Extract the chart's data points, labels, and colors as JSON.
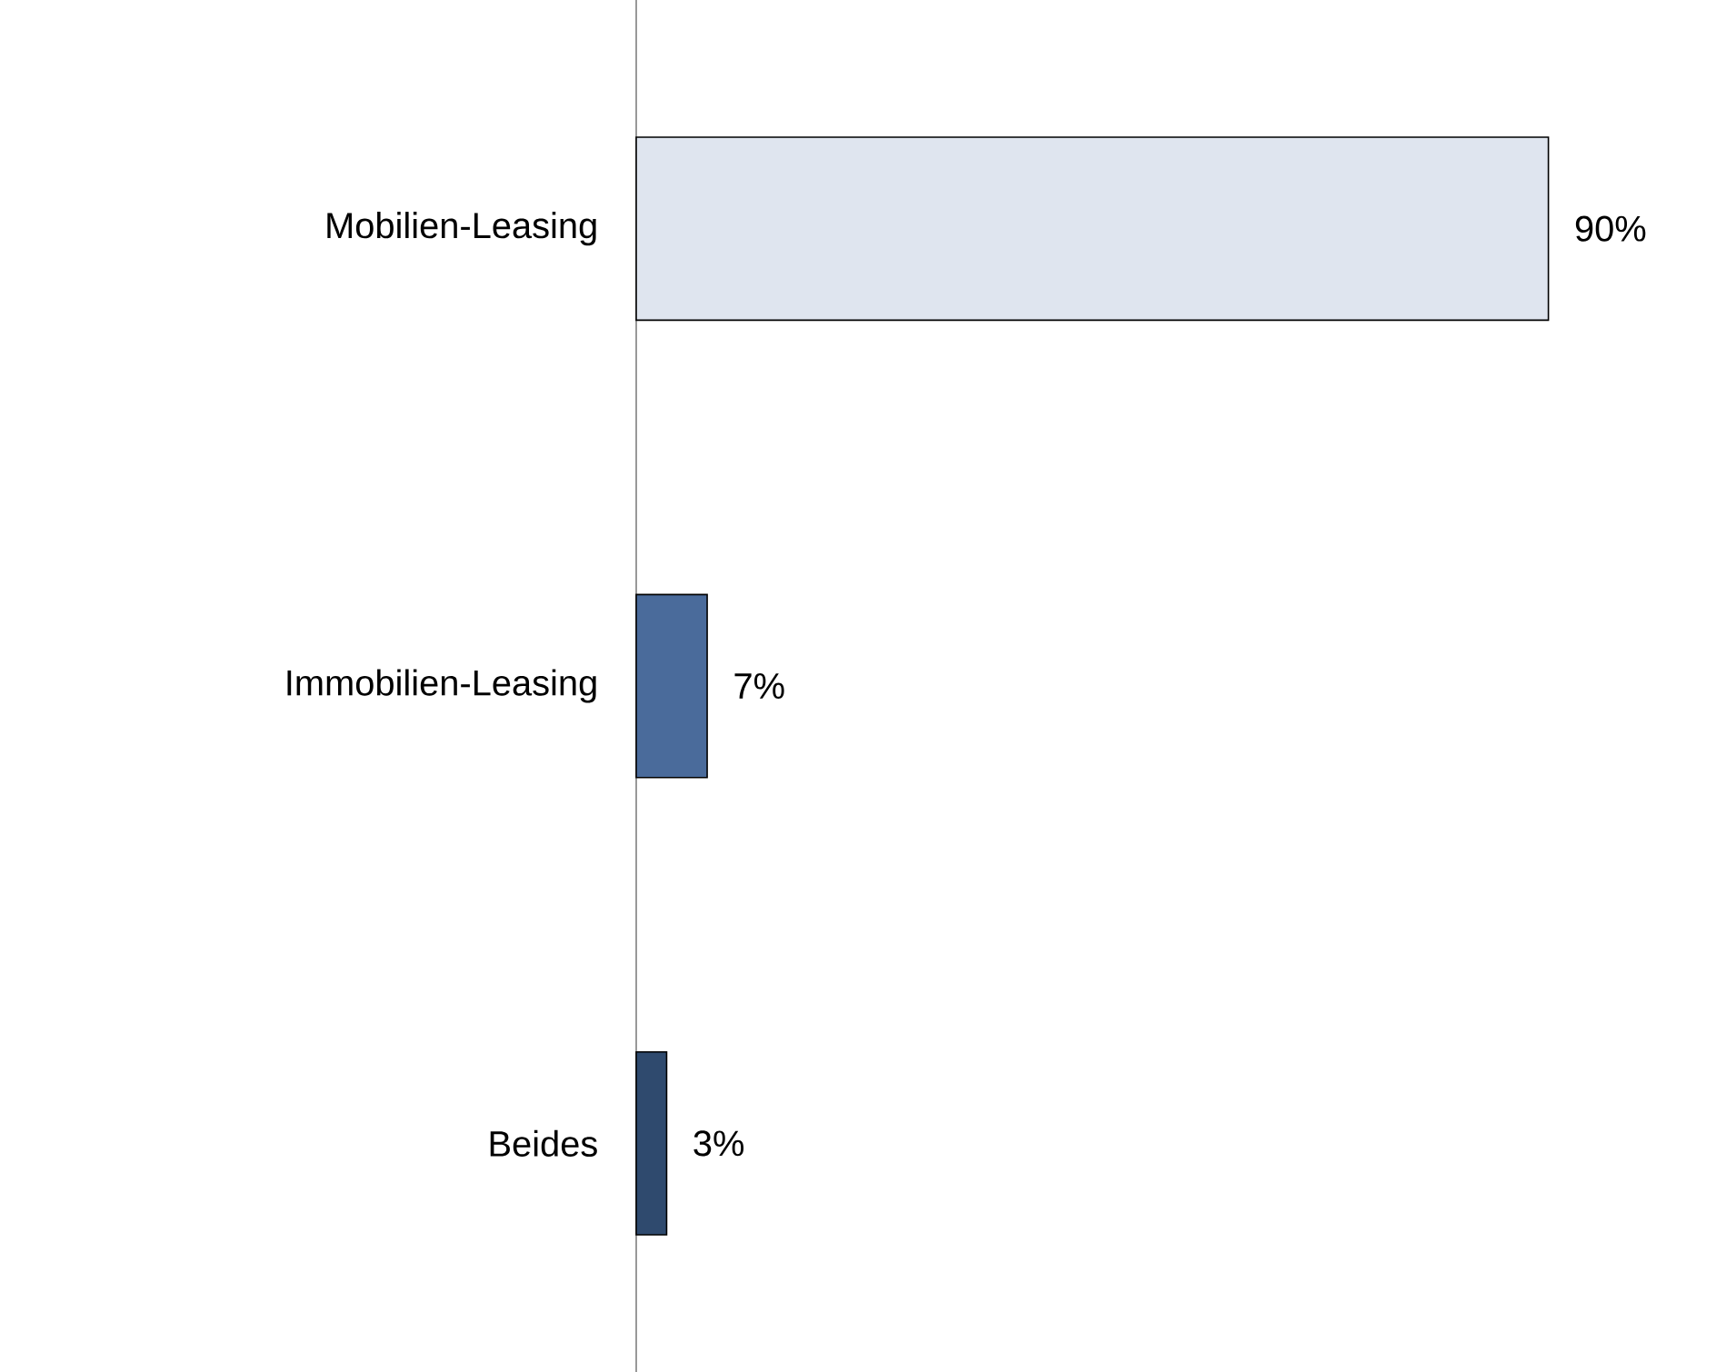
{
  "chart_data": {
    "type": "bar",
    "orientation": "horizontal",
    "categories": [
      "Mobilien-Leasing",
      "Immobilien-Leasing",
      "Beides"
    ],
    "values": [
      90,
      7,
      3
    ],
    "colors": [
      "#dfe5ef",
      "#4a6b9b",
      "#2f4a6e"
    ],
    "value_labels": [
      "90%",
      "7%",
      "3%"
    ]
  }
}
